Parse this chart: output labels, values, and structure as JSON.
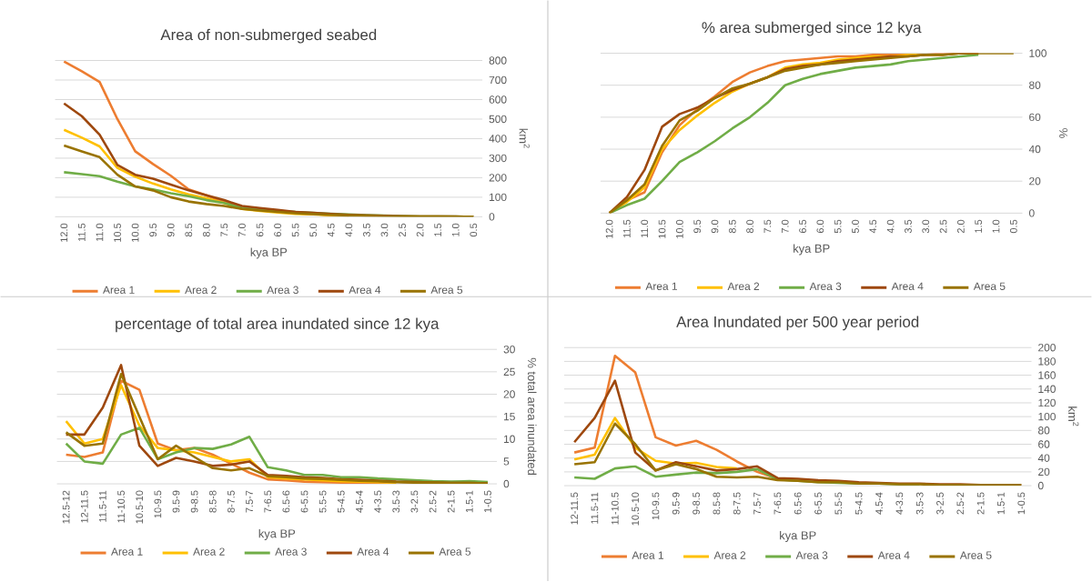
{
  "chart_data": [
    {
      "type": "line",
      "title": "Area of non-submerged seabed",
      "xlabel": "kya BP",
      "ylabel": "km$^{2}$",
      "categories": [
        "12.0",
        "11.5",
        "11.0",
        "10.5",
        "10.0",
        "9.5",
        "9.0",
        "8.5",
        "8.0",
        "7.5",
        "7.0",
        "6.5",
        "6.0",
        "5.5",
        "5.0",
        "4.5",
        "4.0",
        "3.5",
        "3.0",
        "2.5",
        "2.0",
        "1.5",
        "1.0",
        "0.5"
      ],
      "ylim": [
        0,
        800
      ],
      "yticks": [
        0,
        100,
        200,
        300,
        400,
        500,
        600,
        700,
        800
      ],
      "grid": "y",
      "legend": "bottom",
      "series": [
        {
          "name": "Area 1",
          "color": "#ed7d31",
          "values": [
            795,
            745,
            690,
            500,
            335,
            270,
            210,
            140,
            110,
            75,
            45,
            35,
            25,
            18,
            14,
            10,
            7,
            null,
            null,
            null,
            null,
            null,
            null,
            null
          ]
        },
        {
          "name": "Area 2",
          "color": "#ffc000",
          "values": [
            445,
            405,
            360,
            250,
            205,
            170,
            140,
            115,
            95,
            70,
            40,
            30,
            22,
            15,
            12,
            8,
            6,
            null,
            null,
            null,
            null,
            null,
            null,
            null
          ]
        },
        {
          "name": "Area 3",
          "color": "#70ad47",
          "values": [
            228,
            218,
            208,
            180,
            155,
            140,
            120,
            105,
            85,
            70,
            45,
            37,
            30,
            25,
            20,
            15,
            12,
            9,
            6,
            4,
            2,
            1,
            1,
            0
          ]
        },
        {
          "name": "Area 4",
          "color": "#9e480e",
          "values": [
            580,
            515,
            420,
            265,
            215,
            195,
            165,
            135,
            110,
            85,
            55,
            45,
            35,
            25,
            20,
            14,
            10,
            7,
            5,
            3,
            2,
            1,
            1,
            0
          ]
        },
        {
          "name": "Area 5",
          "color": "#997300",
          "values": [
            365,
            335,
            305,
            215,
            155,
            135,
            100,
            78,
            65,
            55,
            40,
            32,
            25,
            18,
            14,
            10,
            7,
            5,
            3,
            2,
            1,
            1,
            0,
            0
          ]
        }
      ]
    },
    {
      "type": "line",
      "title": "% area submerged since 12 kya",
      "xlabel": "kya BP",
      "ylabel": "%",
      "categories": [
        "12.0",
        "11.5",
        "11.0",
        "10.5",
        "10.0",
        "9.5",
        "9.0",
        "8.5",
        "8.0",
        "7.5",
        "7.0",
        "6.5",
        "6.0",
        "5.5",
        "5.0",
        "4.5",
        "4.0",
        "3.5",
        "3.0",
        "2.5",
        "2.0",
        "1.5",
        "1.0",
        "0.5"
      ],
      "ylim": [
        0,
        100
      ],
      "yticks": [
        0,
        20,
        40,
        60,
        80,
        100
      ],
      "grid": "y",
      "legend": "bottom",
      "series": [
        {
          "name": "Area 1",
          "color": "#ed7d31",
          "values": [
            0,
            8,
            13,
            38,
            55,
            65,
            73,
            82,
            88,
            92,
            95,
            96,
            97,
            98,
            98,
            99,
            99,
            99,
            99,
            100,
            100,
            100,
            null,
            null
          ]
        },
        {
          "name": "Area 2",
          "color": "#ffc000",
          "values": [
            0,
            7,
            16,
            40,
            52,
            61,
            69,
            76,
            81,
            85,
            91,
            93,
            94,
            96,
            97,
            98,
            98,
            99,
            99,
            99,
            null,
            null,
            null,
            null
          ]
        },
        {
          "name": "Area 3",
          "color": "#70ad47",
          "values": [
            0,
            5,
            9,
            20,
            32,
            38,
            45,
            53,
            60,
            69,
            80,
            84,
            87,
            89,
            91,
            92,
            93,
            95,
            96,
            97,
            98,
            99,
            null,
            null
          ]
        },
        {
          "name": "Area 4",
          "color": "#9e480e",
          "values": [
            0,
            10,
            27,
            54,
            62,
            66,
            72,
            77,
            81,
            85,
            90,
            92,
            93,
            95,
            96,
            97,
            98,
            98,
            99,
            99,
            100,
            100,
            null,
            null
          ]
        },
        {
          "name": "Area 5",
          "color": "#997300",
          "values": [
            0,
            8,
            18,
            42,
            58,
            64,
            72,
            78,
            81,
            85,
            89,
            91,
            93,
            94,
            95,
            96,
            97,
            98,
            99,
            99,
            100,
            100,
            100,
            100
          ]
        }
      ]
    },
    {
      "type": "line",
      "title": "percentage of total area inundated since 12 kya",
      "xlabel": "kya BP",
      "ylabel": "% total area inundated",
      "categories": [
        "12.5-12",
        "12-11.5",
        "11.5-11",
        "11-10.5",
        "10.5-10",
        "10-9.5",
        "9.5-9",
        "9-8.5",
        "8.5-8",
        "8-7.5",
        "7.5-7",
        "7-6.5",
        "6.5-6",
        "6-5.5",
        "5.5-5",
        "5-4.5",
        "4.5-4",
        "4-3.5",
        "3.5-3",
        "3-2.5",
        "2.5-2",
        "2-1.5",
        "1.5-1",
        "1-0.5"
      ],
      "ylim": [
        0,
        30
      ],
      "yticks": [
        0,
        5,
        10,
        15,
        20,
        25,
        30
      ],
      "grid": "y",
      "legend": "bottom",
      "series": [
        {
          "name": "Area 1",
          "color": "#ed7d31",
          "values": [
            6.5,
            6,
            7,
            23,
            21,
            9,
            7.5,
            8,
            6.5,
            4.5,
            2.5,
            1,
            0.8,
            0.5,
            0.4,
            0.3,
            0.3,
            0.3,
            0.2,
            null,
            null,
            null,
            null,
            null
          ]
        },
        {
          "name": "Area 2",
          "color": "#ffc000",
          "values": [
            14,
            9,
            10,
            22,
            13,
            8,
            7.5,
            7,
            6,
            5,
            5.5,
            1.5,
            1.2,
            1,
            0.8,
            0.6,
            0.5,
            0.4,
            0.3,
            null,
            null,
            null,
            null,
            null
          ]
        },
        {
          "name": "Area 3",
          "color": "#70ad47",
          "values": [
            9,
            5,
            4.5,
            11,
            12.5,
            5.5,
            7,
            8,
            7.8,
            8.8,
            10.5,
            3.7,
            3,
            2,
            2,
            1.5,
            1.5,
            1.2,
            1,
            0.8,
            0.6,
            0.5,
            0.6,
            0.4
          ]
        },
        {
          "name": "Area 4",
          "color": "#9e480e",
          "values": [
            11,
            11,
            17,
            26.5,
            8.5,
            4,
            5.8,
            5,
            4,
            4.3,
            5,
            2,
            1.8,
            1.5,
            1.3,
            1,
            0.9,
            0.7,
            0.5,
            0.4,
            0.3,
            0.2,
            0.2,
            0.1
          ]
        },
        {
          "name": "Area 5",
          "color": "#997300",
          "values": [
            11.5,
            8.5,
            9,
            24.5,
            15,
            5.5,
            8.5,
            6,
            3.5,
            3,
            3.5,
            1.7,
            1.5,
            1.2,
            1.1,
            0.9,
            0.7,
            0.6,
            0.4,
            0.3,
            0.3,
            0.2,
            0.2,
            0.1
          ]
        }
      ]
    },
    {
      "type": "line",
      "title": "Area Inundated per 500 year period",
      "xlabel": "kya BP",
      "ylabel": "km$^{2}$",
      "categories": [
        "12-11.5",
        "11.5-11",
        "11-10.5",
        "10.5-10",
        "10-9.5",
        "9.5-9",
        "9-8.5",
        "8.5-8",
        "8-7.5",
        "7.5-7",
        "7-6.5",
        "6.5-6",
        "6-5.5",
        "5.5-5",
        "5-4.5",
        "4.5-4",
        "4-3.5",
        "3.5-3",
        "3-2.5",
        "2.5-2",
        "2-1.5",
        "1.5-1",
        "1-0.5"
      ],
      "ylim": [
        0,
        200
      ],
      "yticks": [
        0,
        20,
        40,
        60,
        80,
        100,
        120,
        140,
        160,
        180,
        200
      ],
      "grid": "y",
      "legend": "bottom",
      "series": [
        {
          "name": "Area 1",
          "color": "#ed7d31",
          "values": [
            48,
            55,
            188,
            164,
            70,
            58,
            65,
            52,
            35,
            20,
            10,
            null,
            null,
            null,
            null,
            null,
            null,
            null,
            null,
            null,
            null,
            null,
            null
          ]
        },
        {
          "name": "Area 2",
          "color": "#ffc000",
          "values": [
            38,
            45,
            98,
            55,
            36,
            32,
            33,
            27,
            25,
            null,
            null,
            null,
            null,
            null,
            null,
            null,
            null,
            null,
            null,
            null,
            null,
            null,
            null
          ]
        },
        {
          "name": "Area 3",
          "color": "#70ad47",
          "values": [
            12,
            10,
            25,
            28,
            13,
            16,
            19,
            18,
            20,
            24,
            9,
            7,
            5,
            4,
            3,
            3,
            2,
            2,
            null,
            null,
            null,
            null,
            null
          ]
        },
        {
          "name": "Area 4",
          "color": "#9e480e",
          "values": [
            63,
            98,
            152,
            48,
            22,
            34,
            28,
            22,
            24,
            28,
            11,
            10,
            8,
            7,
            5,
            4,
            3,
            3,
            2,
            2,
            1,
            1,
            1
          ]
        },
        {
          "name": "Area 5",
          "color": "#997300",
          "values": [
            31,
            34,
            90,
            60,
            22,
            31,
            24,
            13,
            12,
            13,
            8,
            7,
            5,
            5,
            3,
            3,
            2,
            2,
            1,
            1,
            1,
            1,
            1
          ]
        }
      ]
    }
  ]
}
